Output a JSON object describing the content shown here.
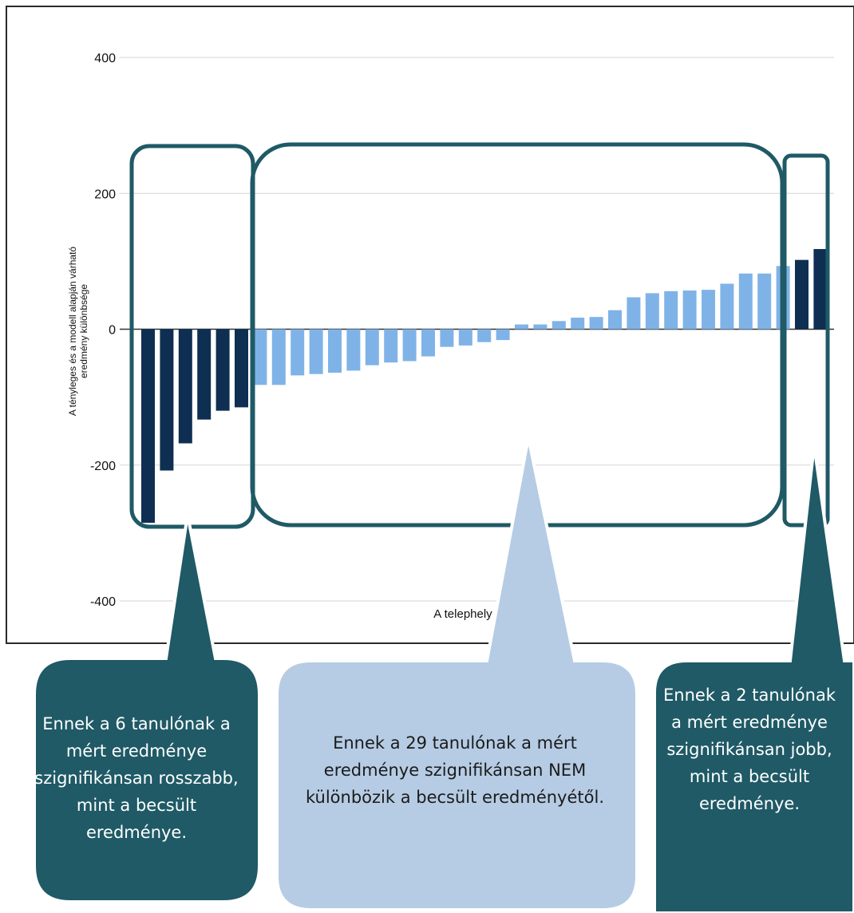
{
  "chart_data": {
    "type": "bar",
    "ylabel": "A tényleges és a modell alapján várható eredmény különbsége",
    "xlabel": "A telephely",
    "ylim": [
      -400,
      400
    ],
    "yticks": [
      400,
      200,
      0,
      -200,
      -400
    ],
    "grid": true,
    "series": [
      {
        "values": [
          -285,
          -208,
          -168,
          -133,
          -120,
          -115,
          -82,
          -82,
          -68,
          -66,
          -64,
          -61,
          -53,
          -49,
          -47,
          -40,
          -26,
          -24,
          -19,
          -16,
          7,
          7,
          12,
          17,
          18,
          28,
          47,
          53,
          56,
          57,
          58,
          67,
          82,
          82,
          93,
          102,
          118
        ]
      }
    ],
    "colors": {
      "significant": "#0e2f52",
      "not_significant": "#7fb3e8",
      "frame": "#1f5a66",
      "callout_dark": "#1f5a66",
      "callout_light": "#b6cce4"
    },
    "groups": {
      "worse_count": 6,
      "not_significant_count": 29,
      "better_count": 2
    }
  },
  "callouts": {
    "left": "Ennek a 6 tanulónak a mért eredménye szignifikánsan rosszabb, mint a becsült eredménye.",
    "middle": "Ennek a 29 tanulónak a mért eredménye szignifikánsan NEM különbözik a becsült eredményétől.",
    "right": "Ennek a 2 tanulónak a mért eredménye szignifikánsan jobb, mint a becsült eredménye."
  }
}
